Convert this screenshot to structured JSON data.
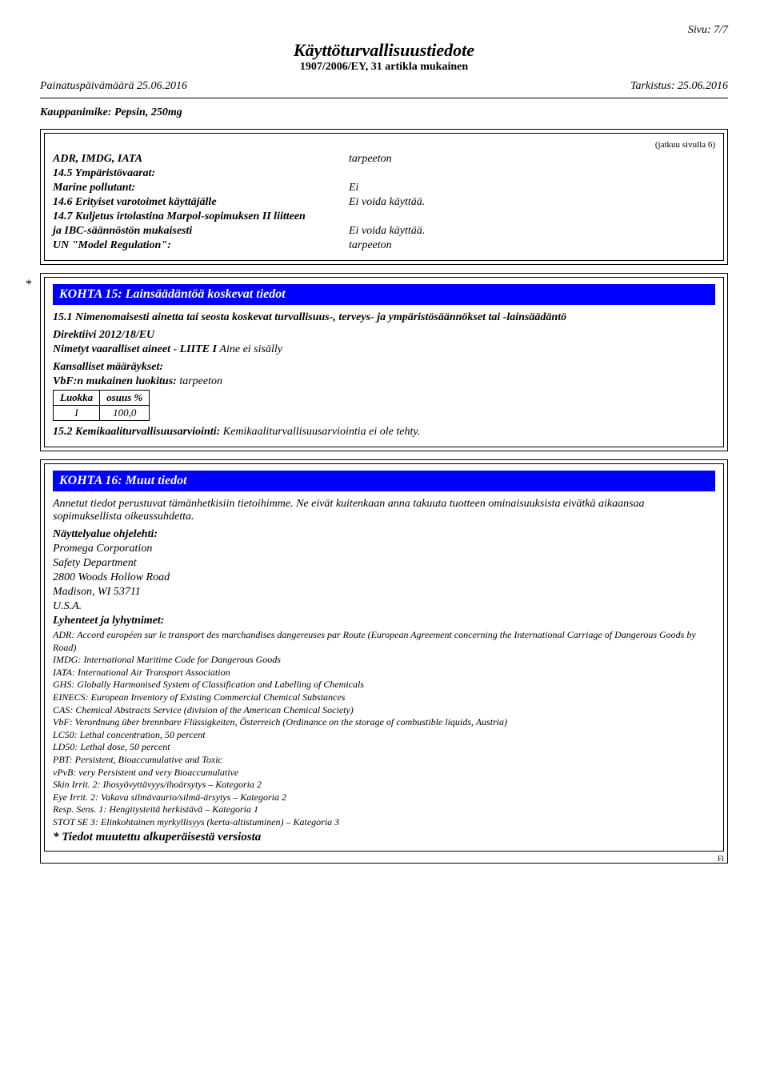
{
  "page_num": "Sivu: 7/7",
  "doc_title": "Käyttöturvallisuustiedote",
  "doc_subtitle": "1907/2006/EY, 31 artikla mukainen",
  "print_date_label": "Painatuspäivämäärä 25.06.2016",
  "revision_label": "Tarkistus: 25.06.2016",
  "trade_label": "Kauppanimike: Pepsin, 250mg",
  "box1": {
    "cont": "(jatkuu sivulla 6)",
    "rows": [
      {
        "label": "ADR, IMDG, IATA",
        "val": "tarpeeton"
      },
      {
        "label_top": "14.5 Ympäristövaarat:",
        "label": "Marine pollutant:",
        "val": "Ei"
      },
      {
        "label": "14.6 Erityiset varotoimet käyttäjälle",
        "val": "Ei voida käyttää."
      },
      {
        "label_top": "14.7 Kuljetus irtolastina Marpol-sopimuksen II liitteen",
        "label": "ja IBC-säännöstön mukaisesti",
        "val": "Ei voida käyttää."
      },
      {
        "label": "UN \"Model Regulation\":",
        "val": "tarpeeton"
      }
    ]
  },
  "sec15": {
    "header": "KOHTA 15: Lainsäädäntöä koskevat tiedot",
    "p1": "15.1 Nimenomaisesti ainetta tai seosta koskevat turvallisuus-, terveys- ja ympäristösäännökset tai -lainsäädäntö",
    "p2": "Direktiivi 2012/18/EU",
    "p3_b": "Nimetyt vaaralliset aineet - LIITE I ",
    "p3_r": "Aine ei sisälly",
    "p4": "Kansalliset määräykset:",
    "p5_b": "VbF:n mukainen luokitus: ",
    "p5_r": "tarpeeton",
    "tbl": {
      "h1": "Luokka",
      "h2": "osuus %",
      "c1": "I",
      "c2": "100,0"
    },
    "p6_b": "15.2 Kemikaaliturvallisuusarviointi: ",
    "p6_r": "Kemikaaliturvallisuusarviointia ei ole tehty."
  },
  "sec16": {
    "header": "KOHTA 16: Muut tiedot",
    "p1": "Annetut tiedot perustuvat tämänhetkisiin tietoihimme. Ne eivät kuitenkaan anna takuuta tuotteen ominaisuuksista eivätkä aikaansaa sopimuksellista oikeussuhdetta.",
    "contact_title": "Näyttelyalue ohjelehti:",
    "contact": [
      "Promega Corporation",
      "Safety Department",
      "2800 Woods Hollow Road",
      "Madison, WI 53711",
      "U.S.A."
    ],
    "abbr_title": "Lyhenteet ja lyhytnimet:",
    "abbr": [
      "ADR: Accord européen sur le transport des marchandises dangereuses par Route (European Agreement concerning the International Carriage of Dangerous Goods by Road)",
      "IMDG: International Maritime Code for Dangerous Goods",
      "IATA: International Air Transport Association",
      "GHS: Globally Harmonised System of Classification and Labelling of Chemicals",
      "EINECS: European Inventory of Existing Commercial Chemical Substances",
      "CAS: Chemical Abstracts Service (division of the American Chemical Society)",
      "VbF: Verordnung über brennbare Flüssigkeiten, Österreich (Ordinance on the storage of combustible liquids, Austria)",
      "LC50: Lethal concentration, 50 percent",
      "LD50: Lethal dose, 50 percent",
      "PBT: Persistent, Bioaccumulative and Toxic",
      "vPvB: very Persistent and very Bioaccumulative",
      "Skin Irrit. 2: Ihosyövyttävyys/ihoärsytys – Kategoria 2",
      "Eye Irrit. 2: Vakava silmävaurio/silmä-ärsytys – Kategoria 2",
      "Resp. Sens. 1: Hengitysteitä herkistävä – Kategoria 1",
      "STOT SE 3: Elinkohtainen myrkyllisyys (kerta-altistuminen) – Kategoria 3"
    ],
    "final": "* Tiedot muutettu alkuperäisestä versiosta",
    "fi": "FI"
  }
}
